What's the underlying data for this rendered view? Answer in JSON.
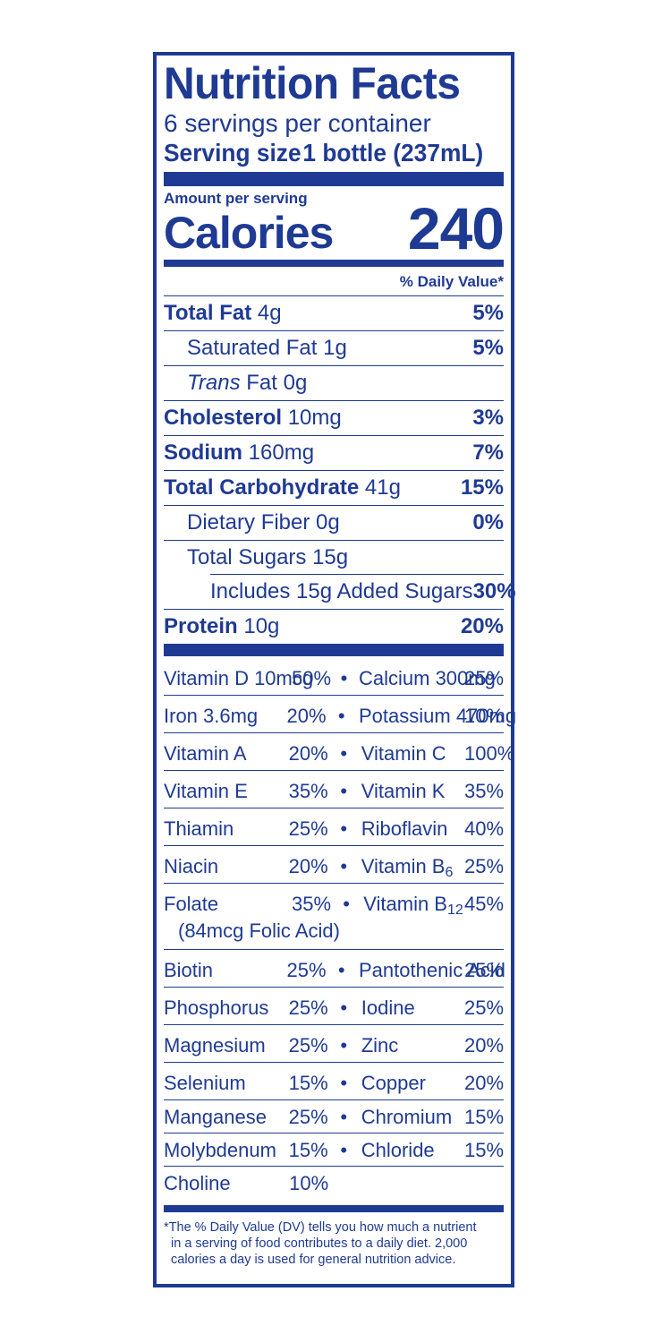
{
  "label": {
    "title": "Nutrition Facts",
    "servings_per_container": "6 servings per container",
    "serving_size_label": "Serving size",
    "serving_size_value": "1 bottle (237mL)",
    "amount_per_serving": "Amount per serving",
    "calories_label": "Calories",
    "calories_value": "240",
    "dv_header": "% Daily Value*"
  },
  "nutrients": [
    {
      "name": "Total Fat",
      "amount": "4g",
      "dv": "5%"
    },
    {
      "name": "Saturated Fat",
      "amount": "1g",
      "dv": "5%"
    },
    {
      "name": "Trans",
      "name_suffix": " Fat",
      "amount": "0g",
      "dv": ""
    },
    {
      "name": "Cholesterol",
      "amount": "10mg",
      "dv": "3%"
    },
    {
      "name": "Sodium",
      "amount": "160mg",
      "dv": "7%"
    },
    {
      "name": "Total Carbohydrate",
      "amount": "41g",
      "dv": "15%"
    },
    {
      "name": "Dietary Fiber",
      "amount": "0g",
      "dv": "0%"
    },
    {
      "name": "Total Sugars",
      "amount": "15g",
      "dv": ""
    },
    {
      "name": "Includes 15g Added Sugars",
      "amount": "",
      "dv": "30%"
    },
    {
      "name": "Protein",
      "amount": "10g",
      "dv": "20%"
    }
  ],
  "vitamins": [
    {
      "l_name": "Vitamin D 10mcg",
      "l_dv": "50%",
      "r_name": "Calcium 300mg",
      "r_dv": "25%"
    },
    {
      "l_name": "Iron 3.6mg",
      "l_dv": "20%",
      "r_name": "Potassium 470mg",
      "r_dv": "10%"
    },
    {
      "l_name": "Vitamin A",
      "l_dv": "20%",
      "r_name": "Vitamin C",
      "r_dv": "100%"
    },
    {
      "l_name": "Vitamin E",
      "l_dv": "35%",
      "r_name": "Vitamin K",
      "r_dv": "35%"
    },
    {
      "l_name": "Thiamin",
      "l_dv": "25%",
      "r_name": "Riboflavin",
      "r_dv": "40%"
    },
    {
      "l_name": "Niacin",
      "l_dv": "20%",
      "r_name": "Vitamin B",
      "r_sub": "6",
      "r_dv": "25%"
    },
    {
      "l_name": "Folate",
      "l_extra": "(84mcg Folic Acid)",
      "l_dv": "35%",
      "r_name": "Vitamin B",
      "r_sub": "12",
      "r_dv": "45%"
    },
    {
      "l_name": "Biotin",
      "l_dv": "25%",
      "r_name": "Pantothenic Acid",
      "r_dv": "25%"
    },
    {
      "l_name": "Phosphorus",
      "l_dv": "25%",
      "r_name": "Iodine",
      "r_dv": "25%"
    },
    {
      "l_name": "Magnesium",
      "l_dv": "25%",
      "r_name": "Zinc",
      "r_dv": "20%"
    },
    {
      "l_name": "Selenium",
      "l_dv": "15%",
      "r_name": "Copper",
      "r_dv": "20%"
    },
    {
      "l_name": "Manganese",
      "l_dv": "25%",
      "r_name": "Chromium",
      "r_dv": "15%"
    },
    {
      "l_name": "Molybdenum",
      "l_dv": "15%",
      "r_name": "Chloride",
      "r_dv": "15%"
    },
    {
      "l_name": "Choline",
      "l_dv": "10%",
      "r_name": "",
      "r_dv": ""
    }
  ],
  "bullet": "•",
  "footnote": [
    "*The % Daily Value (DV) tells you how much a nutrient",
    "in a serving of food contributes to a daily diet. 2,000",
    "calories a day is used for general nutrition advice."
  ],
  "colors": {
    "ink": "#1f3a93",
    "background": "#ffffff"
  }
}
